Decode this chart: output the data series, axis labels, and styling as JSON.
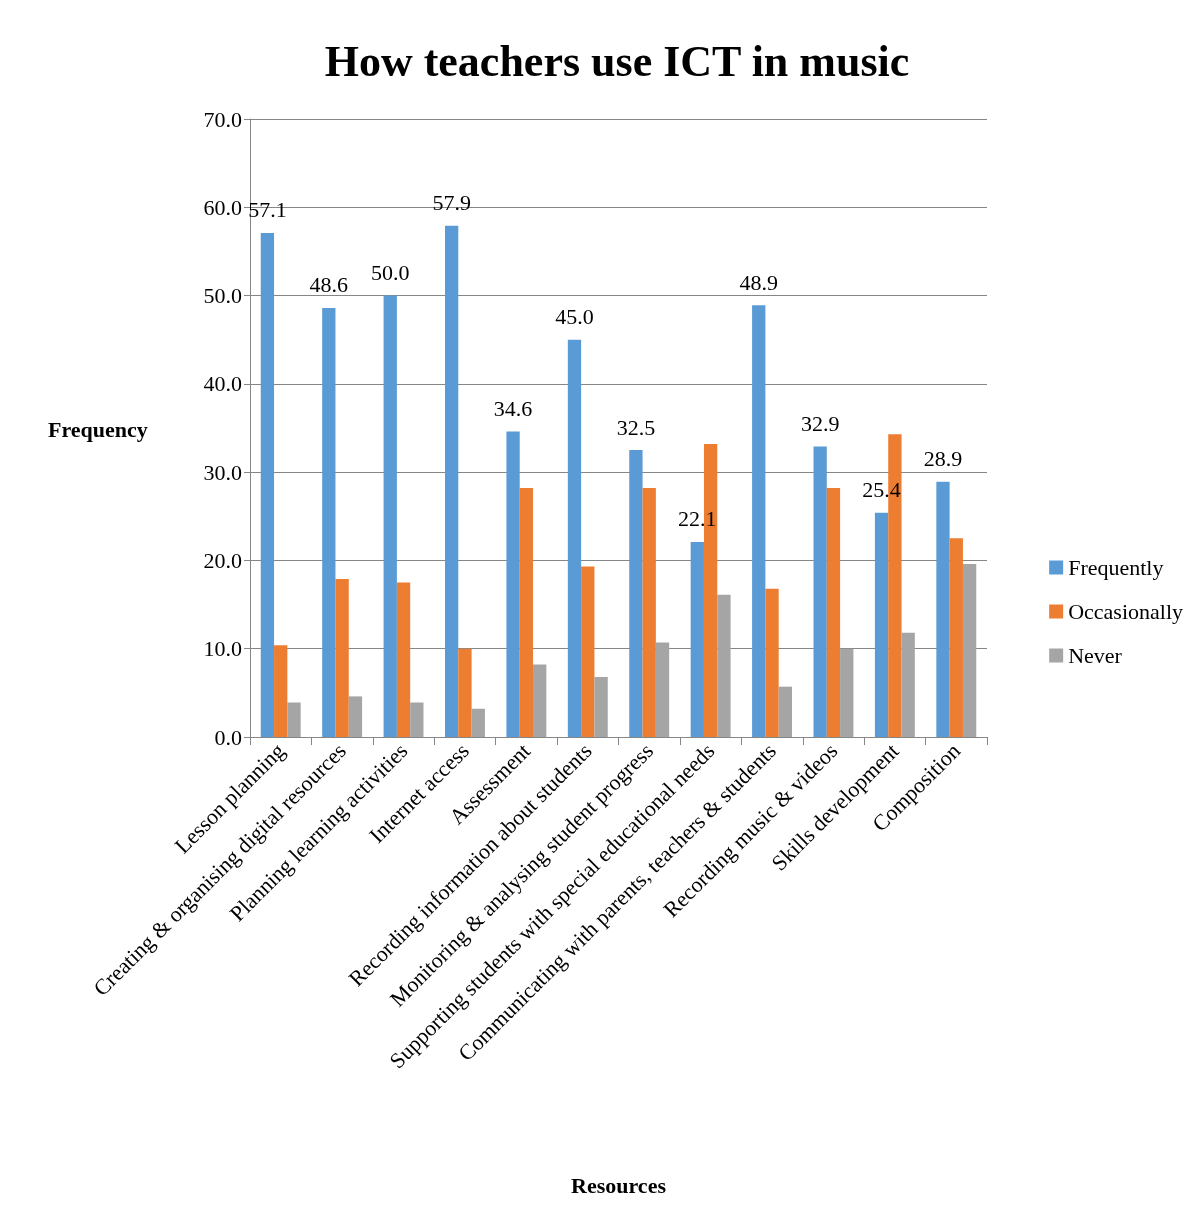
{
  "chart_data": {
    "type": "bar",
    "title": "How teachers use ICT in music",
    "xlabel": "Resources",
    "ylabel": "Frequency",
    "categories": [
      "Lesson planning",
      "Creating & organising digital resources",
      "Planning learning activities",
      "Internet access",
      "Assessment",
      "Recording information about students",
      "Monitoring & analysing student progress",
      "Supporting students with special educational needs",
      "Communicating with parents, teachers & students",
      "Recording music & videos",
      "Skills development",
      "Composition"
    ],
    "series": [
      {
        "name": "Frequently",
        "color": "#5b9bd5",
        "values": [
          57.1,
          48.6,
          50.0,
          57.9,
          34.6,
          45.0,
          32.5,
          22.1,
          48.9,
          32.9,
          25.4,
          28.9
        ],
        "value_labels": [
          "57.1",
          "48.6",
          "50.0",
          "57.9",
          "34.6",
          "45.0",
          "32.5",
          "22.1",
          "48.9",
          "32.9",
          "25.4",
          "28.9"
        ]
      },
      {
        "name": "Occasionally",
        "color": "#ed7d31",
        "values": [
          10.4,
          17.9,
          17.5,
          10.0,
          28.2,
          19.3,
          28.2,
          33.2,
          16.8,
          28.2,
          34.3,
          22.5
        ]
      },
      {
        "name": "Never",
        "color": "#a5a5a5",
        "values": [
          3.9,
          4.6,
          3.9,
          3.2,
          8.2,
          6.8,
          10.7,
          16.1,
          5.7,
          10.0,
          11.8,
          19.6
        ]
      }
    ],
    "ylim": [
      0,
      70
    ],
    "yticks": [
      {
        "value": 0,
        "label": "0.0"
      },
      {
        "value": 10,
        "label": "10.0"
      },
      {
        "value": 20,
        "label": "20.0"
      },
      {
        "value": 30,
        "label": "30.0"
      },
      {
        "value": 40,
        "label": "40.0"
      },
      {
        "value": 50,
        "label": "50.0"
      },
      {
        "value": 60,
        "label": "60.0"
      },
      {
        "value": 70,
        "label": "70.0"
      }
    ],
    "grid": "y",
    "legend": "right"
  }
}
